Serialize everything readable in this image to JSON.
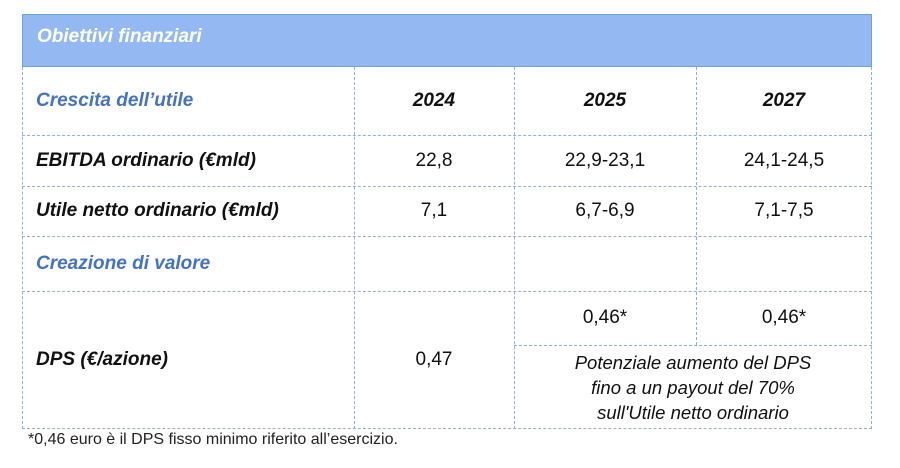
{
  "table": {
    "title": "Obiettivi finanziari",
    "section_growth": "Crescita dell’utile",
    "years": [
      "2024",
      "2025",
      "2027"
    ],
    "rows": [
      {
        "label": "EBITDA ordinario (€mld)",
        "values": [
          "22,8",
          "22,9-23,1",
          "24,1-24,5"
        ]
      },
      {
        "label": "Utile netto ordinario (€mld)",
        "values": [
          "7,1",
          "6,7-6,9",
          "7,1-7,5"
        ]
      }
    ],
    "section_value": "Creazione di valore",
    "dps": {
      "label": "DPS (€/azione)",
      "value_2024": "0,47",
      "value_2025": "0,46*",
      "value_2027": "0,46*",
      "note_line1": "Potenziale aumento del DPS",
      "note_line2": "fino a un payout del 70%",
      "note_line3": "sull'Utile netto ordinario"
    }
  },
  "footnote": "*0,46 euro è il DPS fisso minimo riferito all’esercizio.",
  "colors": {
    "header_bg": "#93b8f2",
    "section_text": "#4472c4",
    "grid": "#8fb0d8"
  }
}
